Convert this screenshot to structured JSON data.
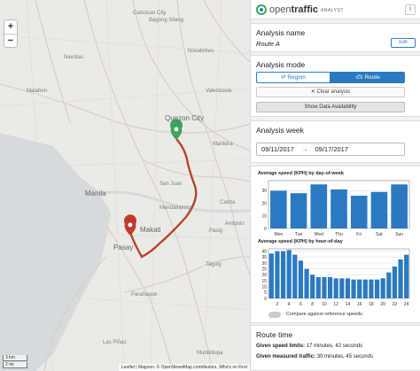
{
  "map": {
    "labels": {
      "caloocan": "Caloocan City",
      "malabon": "Malabon",
      "quezon_city": "Quezon City",
      "manila": "Manila",
      "mandaluyong": "Mandaluyong",
      "san_juan": "San Juan",
      "makati": "Makati",
      "pasay": "Pasay",
      "pasig": "Pasig",
      "taguig": "Taguig",
      "paranaque": "Parañaque",
      "las_pinas": "Las Piñas",
      "muntinlupa": "Muntinlupa",
      "marikina": "Marikina",
      "valenzuela": "Valenzuela",
      "novaliches": "Novaliches",
      "bagong_silang": "Bagong Silang",
      "navotas": "Navotas",
      "cainta": "Cainta",
      "antipolo": "Antipolo"
    },
    "zoom_in": "+",
    "zoom_out": "−",
    "scale_km": "3 km",
    "scale_mi": "2 mi",
    "attribution": "Leaflet | Mapzen, © OpenStreetMap contributors, Who's on First",
    "route_color": "#b5442c",
    "origin_color": "#3ba55c",
    "destination_color": "#c0392b"
  },
  "header": {
    "logo_open": "open",
    "logo_traffic": "traffic",
    "logo_sub": "ANALYST",
    "info": "i"
  },
  "analysis_name": {
    "title": "Analysis name",
    "value": "Route A",
    "edit": "Edit"
  },
  "analysis_mode": {
    "title": "Analysis mode",
    "region": "Region",
    "route": "Route",
    "clear": "Clear analysis",
    "availability": "Show Data Availability"
  },
  "analysis_week": {
    "title": "Analysis week",
    "from": "09/11/2017",
    "to": "09/17/2017"
  },
  "chart_data": [
    {
      "type": "bar",
      "title": "Average speed (KPH) by day-of-week",
      "categories": [
        "Mon",
        "Tue",
        "Wed",
        "Thu",
        "Fri",
        "Sat",
        "Sun"
      ],
      "values": [
        30,
        28,
        35,
        31,
        26,
        29,
        35
      ],
      "ylim": [
        0,
        38
      ],
      "yticks": [
        0,
        10,
        20,
        30
      ],
      "grid": true,
      "bar_color": "#2b79c2"
    },
    {
      "type": "bar",
      "title": "Average speed (KPH) by hour-of-day",
      "categories": [
        "1",
        "2",
        "3",
        "4",
        "5",
        "6",
        "7",
        "8",
        "9",
        "10",
        "11",
        "12",
        "13",
        "14",
        "15",
        "16",
        "17",
        "18",
        "19",
        "20",
        "21",
        "22",
        "23",
        "24"
      ],
      "xtick_labels": [
        "2",
        "4",
        "6",
        "8",
        "10",
        "12",
        "14",
        "16",
        "18",
        "20",
        "22",
        "24"
      ],
      "values": [
        38,
        40,
        40,
        41,
        37,
        32,
        25,
        20,
        18,
        18,
        18,
        17,
        17,
        17,
        16,
        16,
        16,
        16,
        16,
        17,
        22,
        27,
        33,
        37
      ],
      "ylim": [
        0,
        42
      ],
      "yticks": [
        0,
        5,
        10,
        15,
        20,
        25,
        30,
        35,
        40
      ],
      "grid": true,
      "bar_color": "#2b79c2"
    }
  ],
  "compare_label": "Compare against reference speeds",
  "route_time": {
    "title": "Route time",
    "speed_limits_label": "Given speed limits:",
    "speed_limits_value": "17 minutes, 42 seconds",
    "measured_label": "Given measured traffic:",
    "measured_value": "30 minutes, 45 seconds"
  }
}
